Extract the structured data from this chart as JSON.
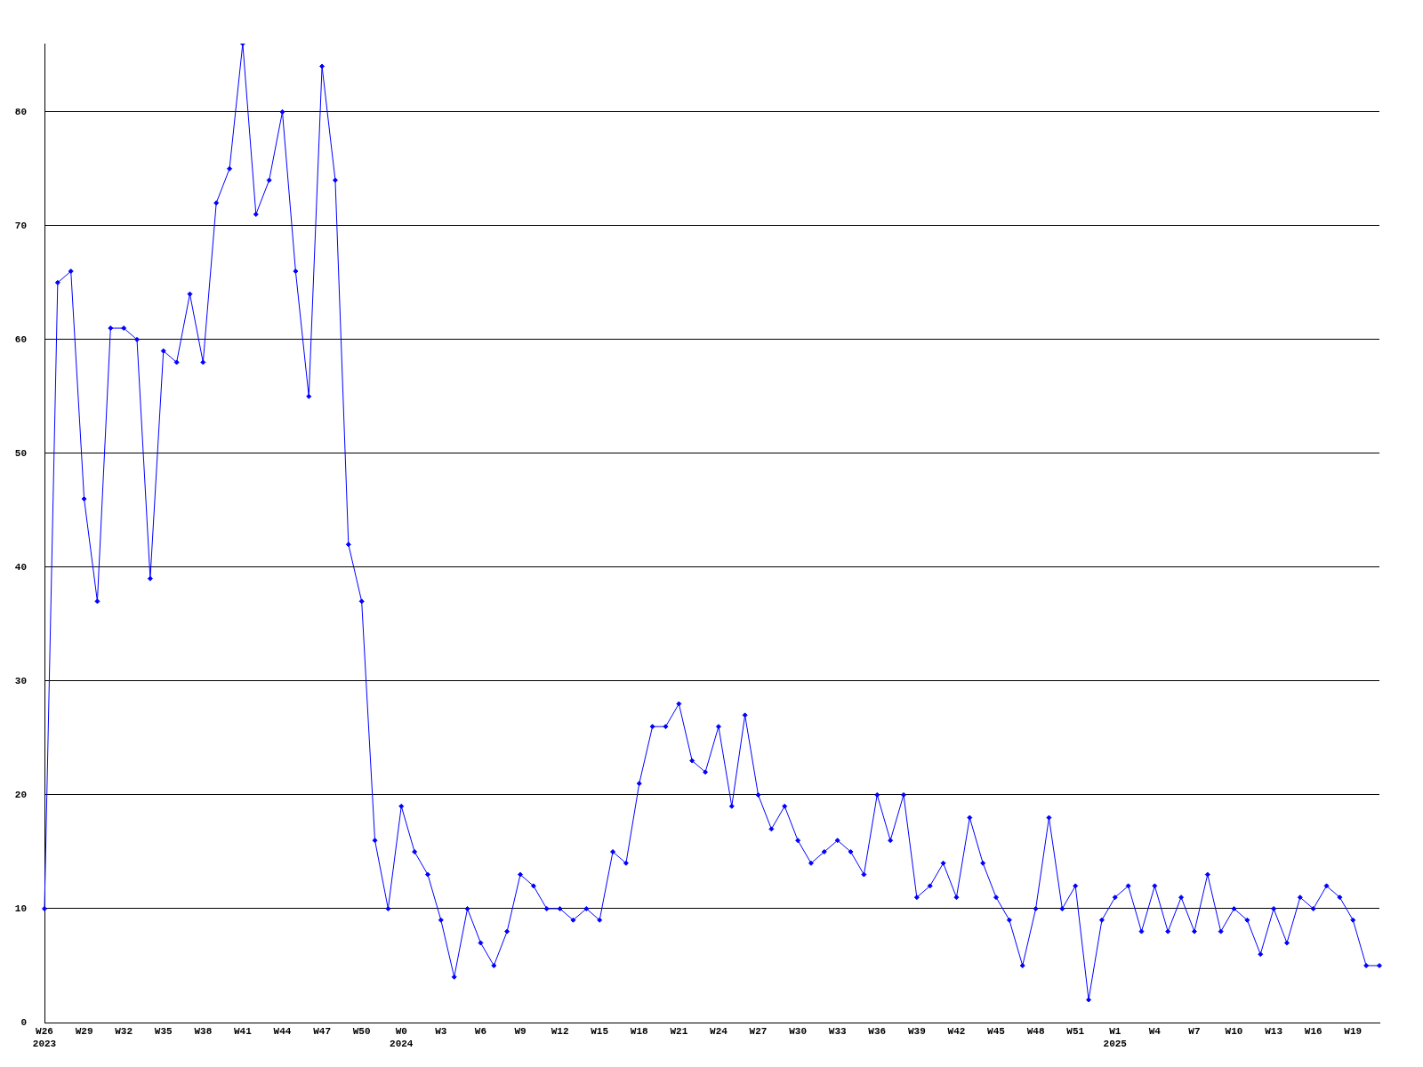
{
  "chart_data": {
    "type": "line",
    "categories": [
      "W26\n2023",
      null,
      null,
      "W29",
      null,
      null,
      "W32",
      null,
      null,
      "W35",
      null,
      null,
      "W38",
      null,
      null,
      "W41",
      null,
      null,
      "W44",
      null,
      null,
      "W47",
      null,
      null,
      "W50",
      null,
      null,
      "W0\n2024",
      null,
      null,
      "W3",
      null,
      null,
      "W6",
      null,
      null,
      "W9",
      null,
      null,
      "W12",
      null,
      null,
      "W15",
      null,
      null,
      "W18",
      null,
      null,
      "W21",
      null,
      null,
      "W24",
      null,
      null,
      "W27",
      null,
      null,
      "W30",
      null,
      null,
      "W33",
      null,
      null,
      "W36",
      null,
      null,
      "W39",
      null,
      null,
      "W42",
      null,
      null,
      "W45",
      null,
      null,
      "W48",
      null,
      null,
      "W51",
      null,
      null,
      "W1\n2025",
      null,
      null,
      "W4",
      null,
      null,
      "W7",
      null,
      null,
      "W10",
      null,
      null,
      "W13",
      null,
      null,
      "W16",
      null,
      null,
      "W19",
      null,
      null
    ],
    "values": [
      10,
      65,
      66,
      46,
      37,
      61,
      61,
      60,
      39,
      59,
      58,
      64,
      58,
      72,
      75,
      86,
      71,
      74,
      80,
      66,
      55,
      84,
      74,
      42,
      37,
      16,
      10,
      19,
      15,
      13,
      9,
      4,
      10,
      7,
      5,
      8,
      13,
      12,
      10,
      10,
      9,
      10,
      9,
      15,
      14,
      21,
      26,
      26,
      28,
      23,
      22,
      26,
      19,
      27,
      20,
      17,
      19,
      16,
      14,
      15,
      16,
      15,
      13,
      20,
      16,
      20,
      11,
      12,
      14,
      11,
      18,
      14,
      11,
      9,
      5,
      10,
      18,
      10,
      12,
      2,
      9,
      11,
      12,
      8,
      12,
      8,
      11,
      8,
      13,
      8,
      10,
      9,
      6,
      10,
      7,
      11,
      10,
      12,
      11,
      9,
      5,
      5
    ],
    "color": "#0000ff",
    "ylim": [
      0,
      86
    ],
    "yticks": [
      0,
      10,
      20,
      30,
      40,
      50,
      60,
      70,
      80
    ],
    "grid": "y",
    "marker": "diamond",
    "line_style": "solid"
  }
}
